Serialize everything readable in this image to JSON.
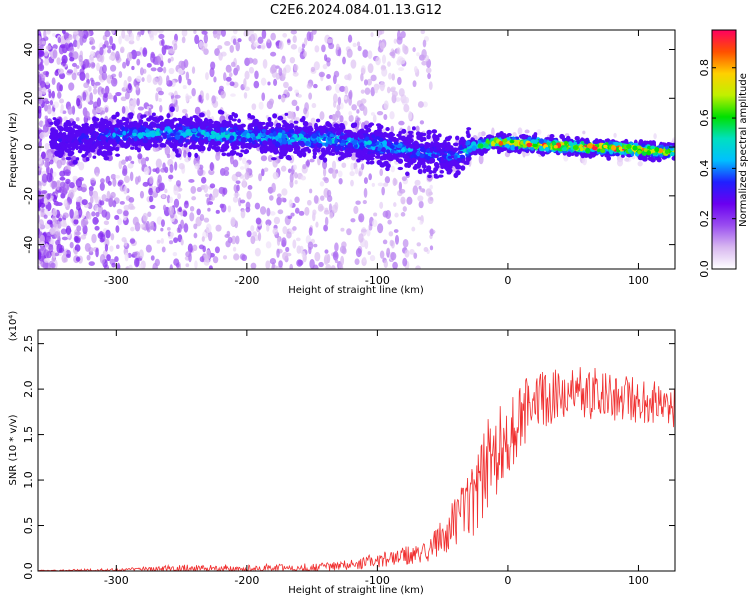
{
  "title": "C2E6.2024.084.01.13.G12",
  "chart_data": [
    {
      "type": "heatmap",
      "xlabel": "Height of straight line (km)",
      "ylabel": "Frequency (Hz)",
      "xlim": [
        -360,
        128
      ],
      "ylim": [
        -50,
        48
      ],
      "x_ticks": [
        -300,
        -200,
        -100,
        0,
        100
      ],
      "y_ticks": [
        -40,
        -20,
        0,
        20,
        40
      ],
      "colorbar": {
        "label": "Normalized spectral amplitude",
        "range": [
          0.0,
          0.95
        ],
        "ticks": [
          "0.0",
          "0.2",
          "0.4",
          "0.6",
          "0.8"
        ],
        "colormap": [
          "#ffffff",
          "#d8b8f0",
          "#9a4ef0",
          "#6a00f0",
          "#2020ff",
          "#00c0ff",
          "#00e0c0",
          "#00e000",
          "#c0f000",
          "#ffd000",
          "#ff5000",
          "#ff0060"
        ]
      },
      "signal_ridge": [
        {
          "x": -340,
          "freq": 3,
          "amp": 0.3
        },
        {
          "x": -300,
          "freq": 5,
          "amp": 0.45
        },
        {
          "x": -260,
          "freq": 6,
          "amp": 0.48
        },
        {
          "x": -220,
          "freq": 5,
          "amp": 0.5
        },
        {
          "x": -180,
          "freq": 4,
          "amp": 0.5
        },
        {
          "x": -140,
          "freq": 3,
          "amp": 0.5
        },
        {
          "x": -100,
          "freq": 1,
          "amp": 0.48
        },
        {
          "x": -70,
          "freq": -2,
          "amp": 0.45
        },
        {
          "x": -40,
          "freq": -4,
          "amp": 0.4
        },
        {
          "x": -28,
          "freq": 0,
          "amp": 0.55
        },
        {
          "x": -10,
          "freq": 2,
          "amp": 0.85
        },
        {
          "x": 20,
          "freq": 1,
          "amp": 0.9
        },
        {
          "x": 60,
          "freq": 0,
          "amp": 0.92
        },
        {
          "x": 100,
          "freq": -1,
          "amp": 0.9
        },
        {
          "x": 128,
          "freq": -2,
          "amp": 0.88
        }
      ]
    },
    {
      "type": "line",
      "xlabel": "Height of straight line (km)",
      "ylabel": "SNR (10 * v/v)",
      "y_multiplier_label": "(x10⁴)",
      "xlim": [
        -360,
        128
      ],
      "ylim": [
        0,
        2.65
      ],
      "x_ticks": [
        -300,
        -200,
        -100,
        0,
        100
      ],
      "y_ticks": [
        "0.0",
        "0.5",
        "1.0",
        "1.5",
        "2.0",
        "2.5"
      ],
      "series": [
        {
          "color": "#f03030",
          "x": [
            -360,
            -300,
            -250,
            -200,
            -150,
            -120,
            -100,
            -80,
            -60,
            -45,
            -35,
            -25,
            -15,
            -5,
            5,
            15,
            30,
            50,
            70,
            90,
            110,
            128
          ],
          "y": [
            0.0,
            0.01,
            0.03,
            0.03,
            0.04,
            0.07,
            0.12,
            0.16,
            0.22,
            0.45,
            0.6,
            0.75,
            1.2,
            1.4,
            1.55,
            1.8,
            1.9,
            1.95,
            1.95,
            1.9,
            1.85,
            1.8
          ],
          "noise": [
            0.01,
            0.02,
            0.04,
            0.04,
            0.05,
            0.06,
            0.08,
            0.1,
            0.14,
            0.25,
            0.35,
            0.45,
            0.55,
            0.45,
            0.4,
            0.35,
            0.3,
            0.3,
            0.28,
            0.26,
            0.25,
            0.22
          ]
        }
      ]
    }
  ]
}
